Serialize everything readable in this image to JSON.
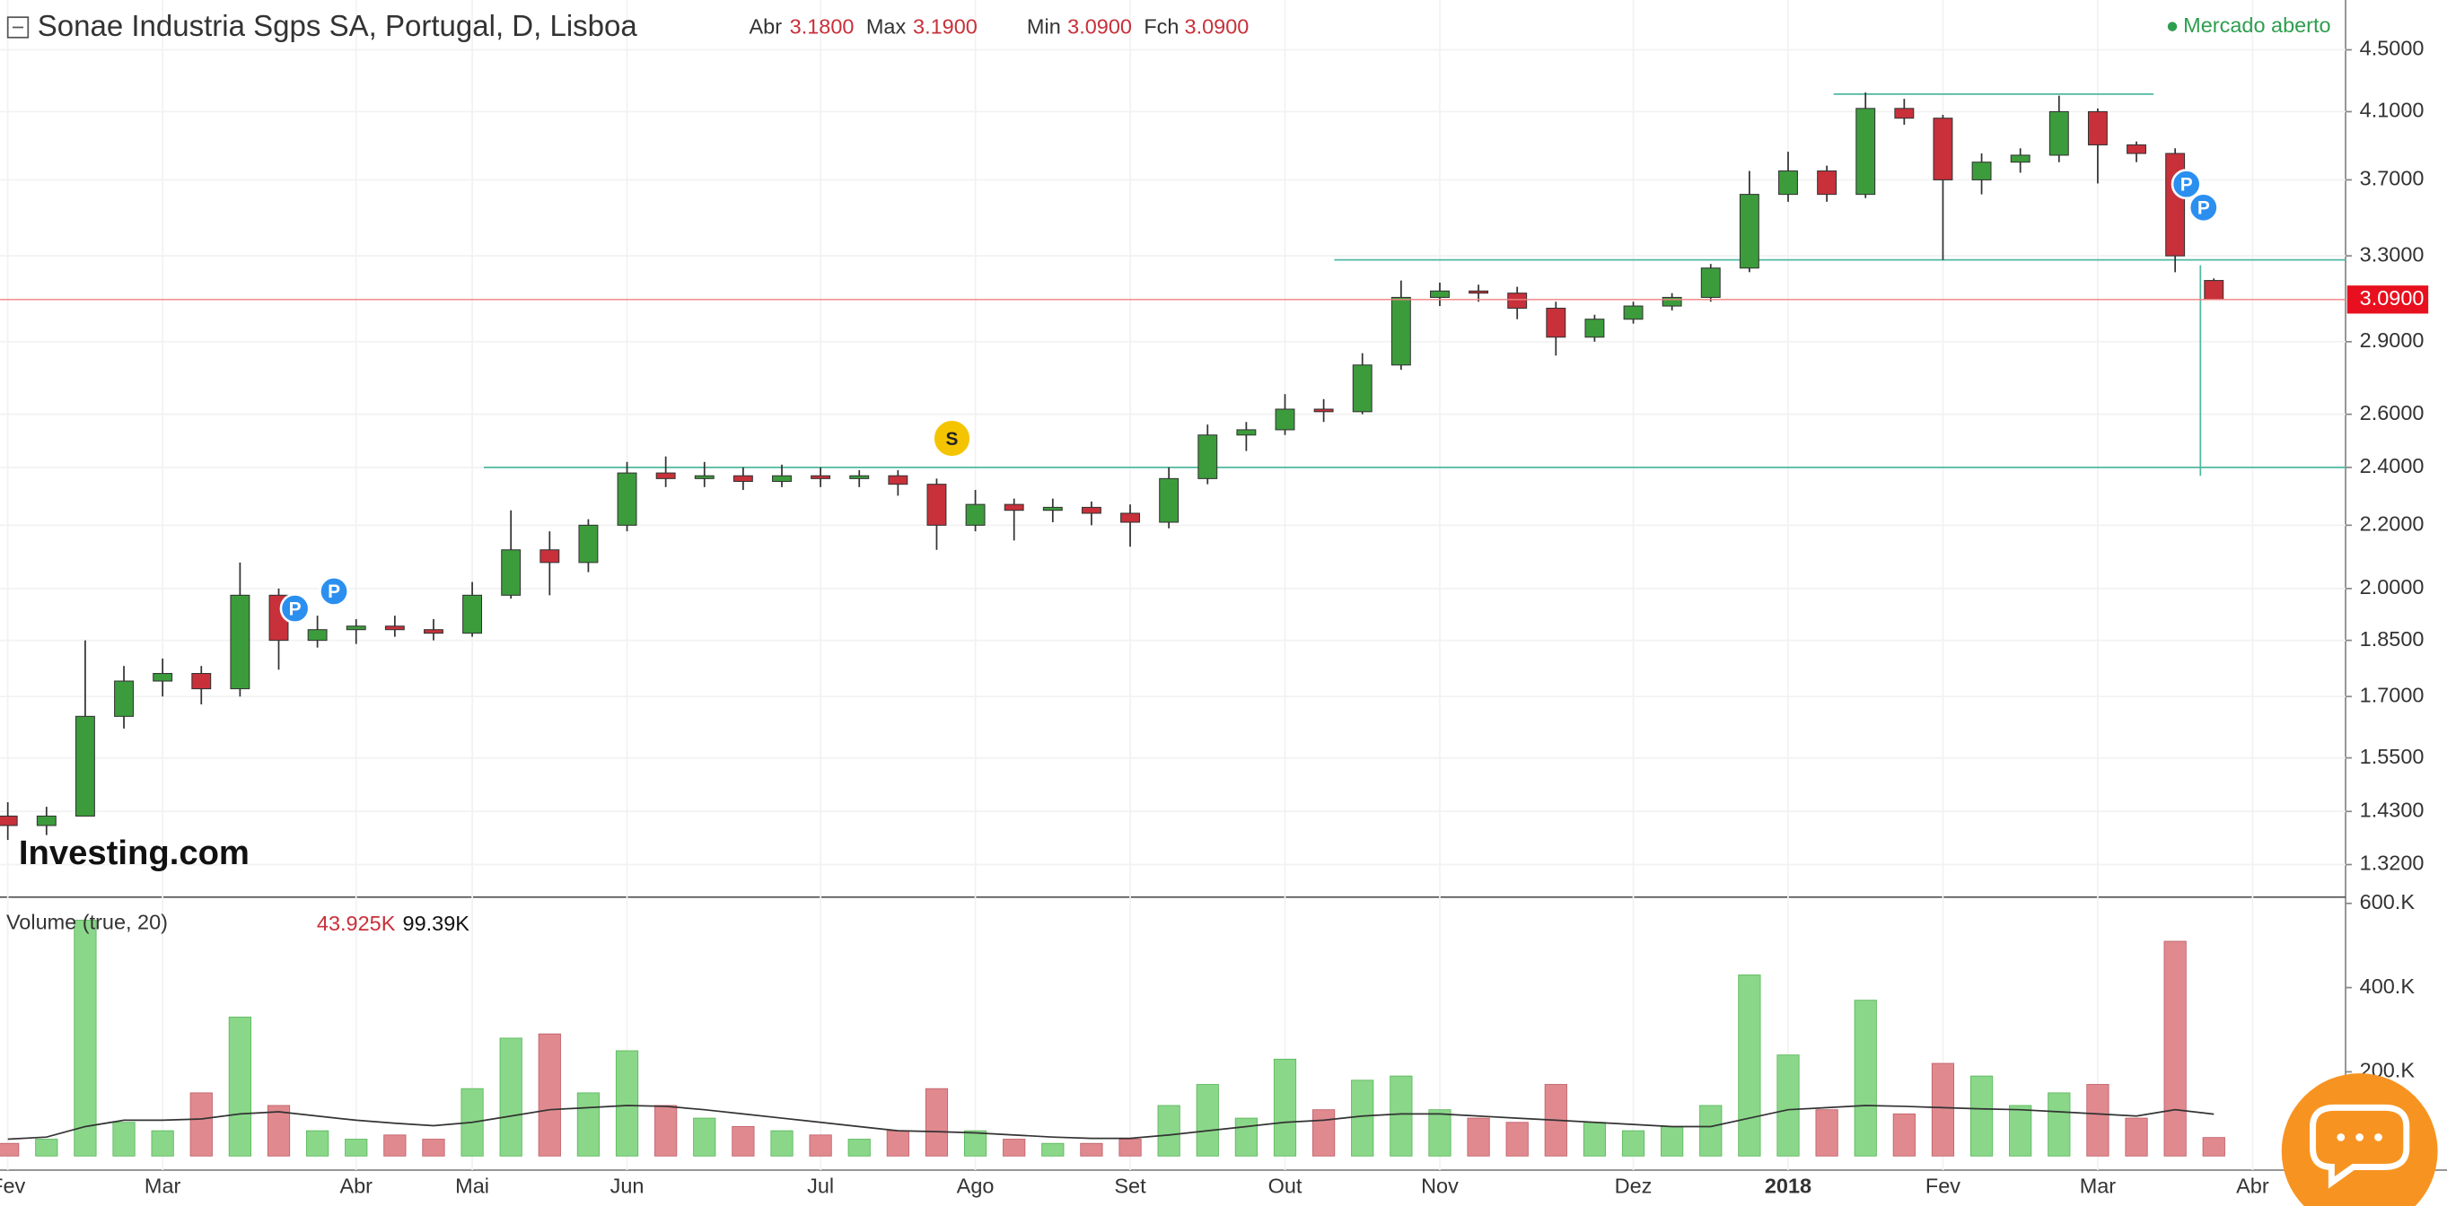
{
  "header": {
    "title": "Sonae Industria Sgps SA, Portugal, D, Lisboa",
    "fields": [
      {
        "label": "Abr",
        "value": "3.1800"
      },
      {
        "label": "Max",
        "value": "3.1900"
      },
      {
        "label": "Min",
        "value": "3.0900"
      },
      {
        "label": "Fch",
        "value": "3.0900"
      }
    ],
    "status": "Mercado aberto",
    "watermark": "Investing.com"
  },
  "events": [
    "P",
    "P",
    "S",
    "P",
    "P"
  ],
  "chart_data": [
    {
      "type": "candlestick",
      "log_scale": true,
      "grid": true,
      "up_color": "#3c9c3c",
      "down_color": "#c8303a",
      "categories": [
        "Fev",
        null,
        null,
        null,
        "Mar",
        null,
        null,
        null,
        null,
        "Abr",
        null,
        null,
        "Mai",
        null,
        null,
        null,
        "Jun",
        null,
        null,
        null,
        null,
        "Jul",
        null,
        null,
        null,
        "Ago",
        null,
        null,
        null,
        "Set",
        null,
        null,
        null,
        "Out",
        null,
        null,
        null,
        "Nov",
        null,
        null,
        null,
        null,
        "Dez",
        null,
        null,
        null,
        "2018",
        null,
        null,
        null,
        "Fev",
        null,
        null,
        null,
        "Mar",
        null,
        null,
        null,
        "Abr"
      ],
      "open": [
        1.42,
        1.4,
        1.42,
        1.65,
        1.74,
        1.76,
        1.72,
        1.98,
        1.85,
        1.88,
        1.89,
        1.88,
        1.87,
        1.98,
        2.12,
        2.08,
        2.2,
        2.38,
        2.36,
        2.37,
        2.35,
        2.37,
        2.36,
        2.37,
        2.34,
        2.2,
        2.27,
        2.25,
        2.26,
        2.24,
        2.21,
        2.36,
        2.52,
        2.54,
        2.62,
        2.61,
        2.8,
        3.1,
        3.13,
        3.12,
        3.05,
        2.92,
        3.0,
        3.06,
        3.1,
        3.24,
        3.62,
        3.75,
        3.62,
        4.12,
        4.06,
        3.7,
        3.8,
        3.84,
        4.1,
        3.9,
        3.85,
        3.18,
        null
      ],
      "high": [
        1.45,
        1.44,
        1.85,
        1.78,
        1.8,
        1.78,
        2.08,
        2.0,
        1.92,
        1.91,
        1.92,
        1.91,
        2.02,
        2.25,
        2.18,
        2.22,
        2.42,
        2.44,
        2.42,
        2.4,
        2.41,
        2.4,
        2.39,
        2.39,
        2.36,
        2.32,
        2.29,
        2.29,
        2.28,
        2.27,
        2.4,
        2.56,
        2.57,
        2.68,
        2.66,
        2.85,
        3.18,
        3.17,
        3.16,
        3.15,
        3.08,
        3.02,
        3.08,
        3.12,
        3.26,
        3.75,
        3.86,
        3.78,
        4.22,
        4.18,
        4.08,
        3.85,
        3.88,
        4.2,
        4.12,
        3.92,
        3.88,
        3.19,
        null
      ],
      "low": [
        1.37,
        1.38,
        1.42,
        1.62,
        1.7,
        1.68,
        1.7,
        1.77,
        1.83,
        1.84,
        1.86,
        1.85,
        1.86,
        1.97,
        1.98,
        2.05,
        2.18,
        2.33,
        2.33,
        2.32,
        2.33,
        2.33,
        2.33,
        2.3,
        2.12,
        2.18,
        2.15,
        2.21,
        2.2,
        2.13,
        2.19,
        2.34,
        2.46,
        2.52,
        2.57,
        2.6,
        2.78,
        3.06,
        3.08,
        3.0,
        2.84,
        2.9,
        2.98,
        3.04,
        3.08,
        3.22,
        3.58,
        3.58,
        3.6,
        4.02,
        3.28,
        3.62,
        3.74,
        3.8,
        3.68,
        3.8,
        3.22,
        3.09,
        null
      ],
      "close": [
        1.4,
        1.42,
        1.65,
        1.74,
        1.76,
        1.72,
        1.98,
        1.85,
        1.88,
        1.89,
        1.88,
        1.87,
        1.98,
        2.12,
        2.08,
        2.2,
        2.38,
        2.36,
        2.37,
        2.35,
        2.37,
        2.36,
        2.37,
        2.34,
        2.2,
        2.27,
        2.25,
        2.26,
        2.24,
        2.21,
        2.36,
        2.52,
        2.54,
        2.62,
        2.61,
        2.8,
        3.1,
        3.13,
        3.12,
        3.05,
        2.92,
        3.0,
        3.06,
        3.1,
        3.24,
        3.62,
        3.75,
        3.62,
        4.12,
        4.06,
        3.7,
        3.8,
        3.84,
        4.1,
        3.9,
        3.85,
        3.3,
        3.09,
        null
      ],
      "ylim": [
        1.26,
        4.85
      ],
      "yticks": [
        {
          "value": 4.5,
          "label": "4.5000"
        },
        {
          "value": 4.1,
          "label": "4.1000"
        },
        {
          "value": 3.7,
          "label": "3.7000"
        },
        {
          "value": 3.3,
          "label": "3.3000"
        },
        {
          "value": 2.9,
          "label": "2.9000"
        },
        {
          "value": 2.6,
          "label": "2.6000"
        },
        {
          "value": 2.4,
          "label": "2.4000"
        },
        {
          "value": 2.2,
          "label": "2.2000"
        },
        {
          "value": 2.0,
          "label": "2.0000"
        },
        {
          "value": 1.85,
          "label": "1.8500"
        },
        {
          "value": 1.7,
          "label": "1.7000"
        },
        {
          "value": 1.55,
          "label": "1.5500"
        },
        {
          "value": 1.43,
          "label": "1.4300"
        },
        {
          "value": 1.32,
          "label": "1.3200"
        }
      ],
      "levels": [
        4.21,
        3.28,
        2.4
      ],
      "last_price": {
        "value": 3.09,
        "label": "3.0900"
      }
    },
    {
      "type": "bar",
      "name": "Volume (true, 20)",
      "legend_values": [
        "43.925K",
        "99.39K"
      ],
      "up_color": "#8ad78a",
      "down_color": "#e08a8f",
      "line_color": "#333333",
      "series": [
        {
          "name": "Volume",
          "values": [
            30000,
            40000,
            560000,
            80000,
            60000,
            150000,
            330000,
            120000,
            60000,
            40000,
            50000,
            40000,
            160000,
            280000,
            290000,
            150000,
            250000,
            120000,
            90000,
            70000,
            60000,
            50000,
            40000,
            60000,
            160000,
            60000,
            40000,
            30000,
            30000,
            40000,
            120000,
            170000,
            90000,
            230000,
            110000,
            180000,
            190000,
            110000,
            90000,
            80000,
            170000,
            80000,
            60000,
            70000,
            120000,
            430000,
            240000,
            110000,
            370000,
            100000,
            220000,
            190000,
            120000,
            150000,
            170000,
            90000,
            510000,
            43925,
            null
          ]
        },
        {
          "name": "MA",
          "values": [
            40000,
            45000,
            70000,
            85000,
            85000,
            88000,
            100000,
            105000,
            95000,
            85000,
            78000,
            72000,
            80000,
            95000,
            110000,
            115000,
            120000,
            118000,
            110000,
            100000,
            90000,
            80000,
            70000,
            60000,
            58000,
            55000,
            50000,
            45000,
            42000,
            42000,
            50000,
            60000,
            70000,
            80000,
            85000,
            95000,
            100000,
            100000,
            95000,
            90000,
            85000,
            80000,
            75000,
            70000,
            70000,
            90000,
            110000,
            115000,
            120000,
            118000,
            115000,
            112000,
            110000,
            105000,
            100000,
            95000,
            110000,
            99390,
            null
          ]
        }
      ],
      "ylim": [
        0,
        615000
      ],
      "yticks": [
        {
          "value": 600000,
          "label": "600.K"
        },
        {
          "value": 400000,
          "label": "400.K"
        },
        {
          "value": 200000,
          "label": "200.K"
        }
      ]
    }
  ]
}
